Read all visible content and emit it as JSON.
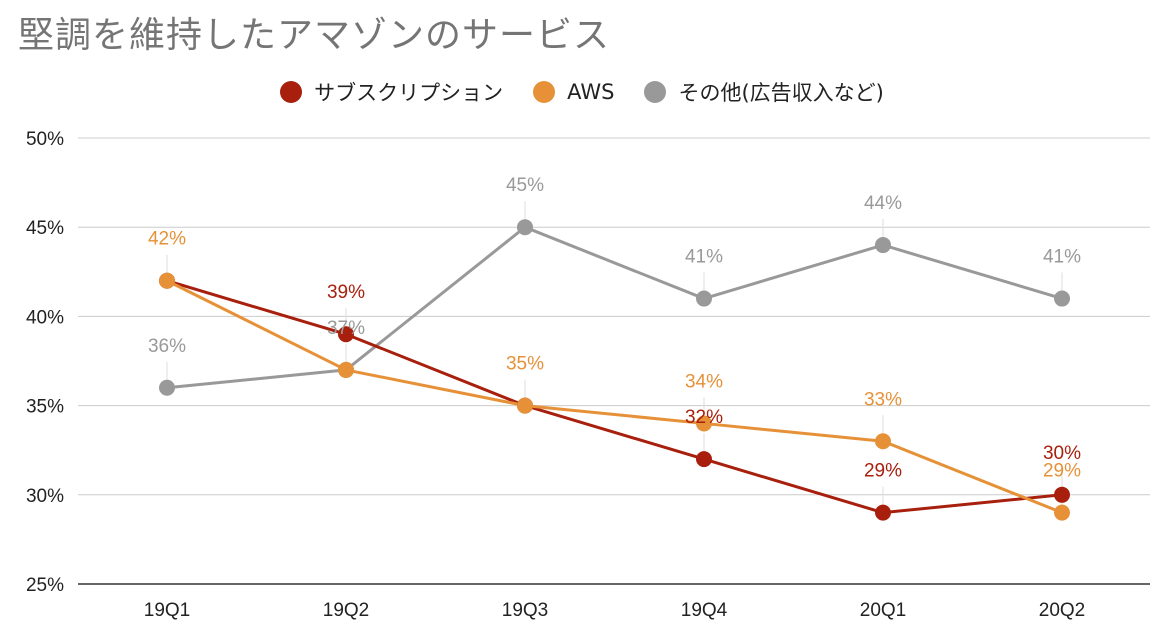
{
  "chart_data": {
    "type": "line",
    "title": "堅調を維持したアマゾンのサービス",
    "categories": [
      "19Q1",
      "19Q2",
      "19Q3",
      "19Q4",
      "20Q1",
      "20Q2"
    ],
    "ylim": [
      25,
      50
    ],
    "yticks": [
      "25%",
      "30%",
      "35%",
      "40%",
      "45%",
      "50%"
    ],
    "grid": true,
    "legend_position": "top",
    "series": [
      {
        "name": "サブスクリプション",
        "color": "#a8200d",
        "values": [
          42,
          39,
          35,
          32,
          29,
          30
        ],
        "labels": [
          "",
          "39%",
          "",
          "32%",
          "29%",
          "30%"
        ]
      },
      {
        "name": "AWS",
        "color": "#e69138",
        "values": [
          42,
          37,
          35,
          34,
          33,
          29
        ],
        "labels": [
          "42%",
          "",
          "35%",
          "34%",
          "33%",
          "29%"
        ]
      },
      {
        "name": "その他(広告収入など)",
        "color": "#999999",
        "values": [
          36,
          37,
          45,
          41,
          44,
          41
        ],
        "labels": [
          "36%",
          "37%",
          "45%",
          "41%",
          "44%",
          "41%"
        ]
      }
    ]
  }
}
